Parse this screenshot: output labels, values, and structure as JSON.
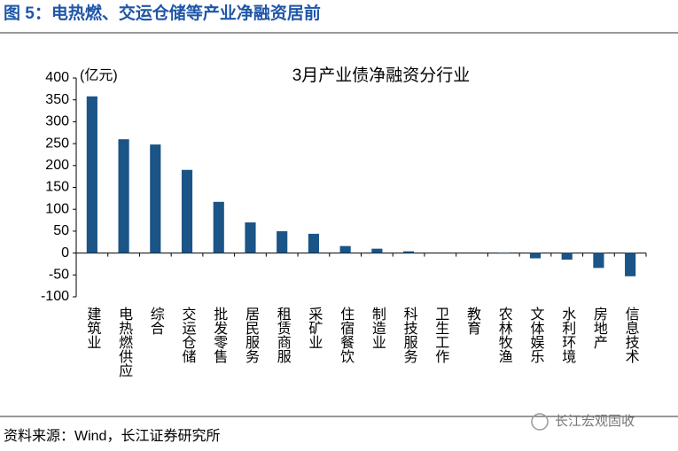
{
  "header": {
    "title": "图 5：电热燃、交运仓储等产业净融资居前"
  },
  "chart_data": {
    "type": "bar",
    "title": "3月产业债净融资分行业",
    "y_label": "(亿元)",
    "categories": [
      "建筑业",
      "电热燃供应",
      "综合",
      "交运仓储",
      "批发零售",
      "居民服务",
      "租赁商服",
      "采矿业",
      "住宿餐饮",
      "制造业",
      "科技服务",
      "卫生工作",
      "教育",
      "农林牧渔",
      "文体娱乐",
      "水利环境",
      "房地产",
      "信息技术"
    ],
    "values": [
      358,
      260,
      248,
      190,
      117,
      70,
      50,
      44,
      16,
      10,
      4,
      0,
      0,
      -1,
      -12,
      -15,
      -34,
      -53
    ],
    "color": "#1b5486",
    "ylim": [
      -100,
      400
    ],
    "yticks": [
      -100,
      -50,
      0,
      50,
      100,
      150,
      200,
      250,
      300,
      350,
      400
    ],
    "grid": false
  },
  "footer": {
    "source": "资料来源：Wind，长江证券研究所",
    "watermark": "长江宏观固收"
  }
}
